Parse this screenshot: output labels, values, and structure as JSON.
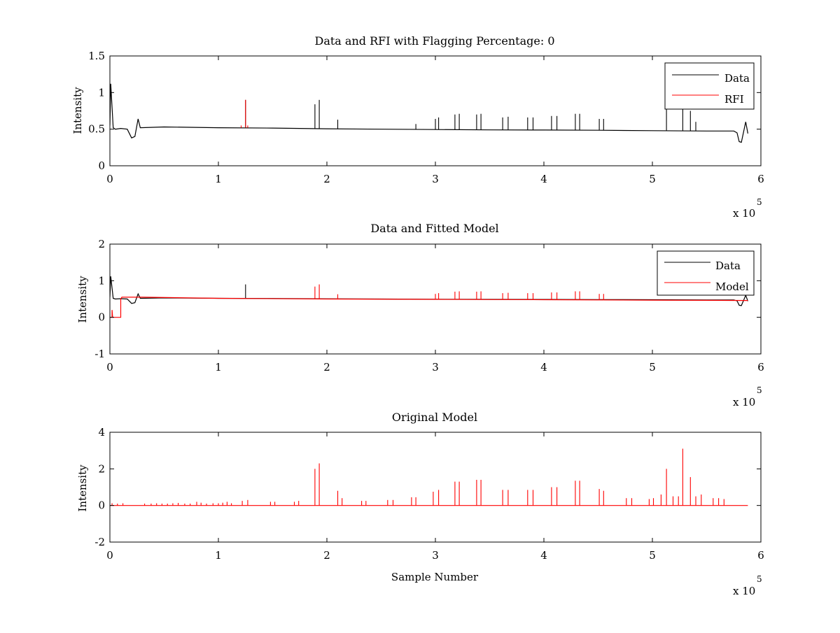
{
  "chart_data": [
    {
      "type": "line",
      "title": "Data and RFI with Flagging Percentage: 0",
      "xlabel": "",
      "ylabel": "Intensity",
      "xlim": [
        0,
        600000
      ],
      "ylim": [
        0,
        1.5
      ],
      "x_ticks": [
        "0",
        "1",
        "2",
        "3",
        "4",
        "5",
        "6"
      ],
      "y_ticks": [
        "0",
        "0.5",
        "1",
        "1.5"
      ],
      "x_multiplier": "x 10",
      "x_multiplier_exp": "5",
      "legend": {
        "position": "top-right",
        "entries": [
          "Data",
          "RFI"
        ]
      },
      "colors": {
        "Data": "#000000",
        "RFI": "#ff0000"
      },
      "series": [
        {
          "name": "Data",
          "baseline": [
            [
              0,
              0.55
            ],
            [
              800,
              1.12
            ],
            [
              3000,
              0.52
            ],
            [
              5000,
              0.5
            ],
            [
              10000,
              0.51
            ],
            [
              16000,
              0.5
            ],
            [
              20000,
              0.38
            ],
            [
              23000,
              0.4
            ],
            [
              26000,
              0.64
            ],
            [
              28000,
              0.52
            ],
            [
              50000,
              0.53
            ],
            [
              100000,
              0.52
            ],
            [
              150000,
              0.515
            ],
            [
              200000,
              0.505
            ],
            [
              250000,
              0.5
            ],
            [
              300000,
              0.495
            ],
            [
              350000,
              0.49
            ],
            [
              400000,
              0.488
            ],
            [
              450000,
              0.485
            ],
            [
              500000,
              0.48
            ],
            [
              550000,
              0.475
            ],
            [
              575000,
              0.475
            ],
            [
              578000,
              0.45
            ],
            [
              580000,
              0.33
            ],
            [
              582000,
              0.32
            ],
            [
              586000,
              0.6
            ],
            [
              588000,
              0.44
            ]
          ],
          "spikes": [
            [
              125000,
              0.9
            ],
            [
              189000,
              0.84
            ],
            [
              193000,
              0.9
            ],
            [
              210000,
              0.63
            ],
            [
              282000,
              0.57
            ],
            [
              300000,
              0.64
            ],
            [
              303000,
              0.66
            ],
            [
              318000,
              0.7
            ],
            [
              322000,
              0.71
            ],
            [
              338000,
              0.7
            ],
            [
              342000,
              0.71
            ],
            [
              362000,
              0.66
            ],
            [
              367000,
              0.67
            ],
            [
              385000,
              0.66
            ],
            [
              390000,
              0.66
            ],
            [
              407000,
              0.68
            ],
            [
              412000,
              0.68
            ],
            [
              429000,
              0.71
            ],
            [
              433000,
              0.71
            ],
            [
              451000,
              0.64
            ],
            [
              455000,
              0.64
            ],
            [
              513000,
              0.87
            ],
            [
              528000,
              1.05
            ],
            [
              535000,
              0.75
            ],
            [
              540000,
              0.6
            ]
          ]
        },
        {
          "name": "RFI",
          "spikes": [
            [
              121000,
              0.55
            ],
            [
              125000,
              0.9
            ],
            [
              127000,
              0.55
            ]
          ]
        }
      ]
    },
    {
      "type": "line",
      "title": "Data and Fitted Model",
      "xlabel": "",
      "ylabel": "Intensity",
      "xlim": [
        0,
        600000
      ],
      "ylim": [
        -1,
        2
      ],
      "x_ticks": [
        "0",
        "1",
        "2",
        "3",
        "4",
        "5",
        "6"
      ],
      "y_ticks": [
        "-1",
        "0",
        "1",
        "2"
      ],
      "x_multiplier": "x 10",
      "x_multiplier_exp": "5",
      "legend": {
        "position": "top-right",
        "entries": [
          "Data",
          "Model"
        ]
      },
      "colors": {
        "Data": "#000000",
        "Model": "#ff0000"
      },
      "series": [
        {
          "name": "Data",
          "baseline": [
            [
              0,
              0.55
            ],
            [
              800,
              1.12
            ],
            [
              3000,
              0.52
            ],
            [
              5000,
              0.5
            ],
            [
              10000,
              0.51
            ],
            [
              16000,
              0.5
            ],
            [
              20000,
              0.38
            ],
            [
              23000,
              0.4
            ],
            [
              26000,
              0.64
            ],
            [
              28000,
              0.52
            ],
            [
              50000,
              0.53
            ],
            [
              100000,
              0.52
            ],
            [
              150000,
              0.515
            ],
            [
              200000,
              0.505
            ],
            [
              250000,
              0.5
            ],
            [
              300000,
              0.495
            ],
            [
              350000,
              0.49
            ],
            [
              400000,
              0.488
            ],
            [
              450000,
              0.485
            ],
            [
              500000,
              0.48
            ],
            [
              550000,
              0.475
            ],
            [
              575000,
              0.475
            ],
            [
              578000,
              0.45
            ],
            [
              580000,
              0.33
            ],
            [
              582000,
              0.32
            ],
            [
              586000,
              0.6
            ],
            [
              588000,
              0.44
            ]
          ],
          "spikes": [
            [
              125000,
              0.9
            ]
          ]
        },
        {
          "name": "Model",
          "baseline": [
            [
              0,
              0.0
            ],
            [
              2000,
              0.0
            ],
            [
              2000,
              0.2
            ],
            [
              2500,
              0.0
            ],
            [
              10000,
              0.0
            ],
            [
              10000,
              0.5
            ],
            [
              11000,
              0.55
            ],
            [
              30000,
              0.55
            ],
            [
              100000,
              0.52
            ],
            [
              200000,
              0.5
            ],
            [
              300000,
              0.49
            ],
            [
              400000,
              0.48
            ],
            [
              500000,
              0.47
            ],
            [
              588000,
              0.46
            ]
          ],
          "spikes": [
            [
              189000,
              0.84
            ],
            [
              193000,
              0.9
            ],
            [
              210000,
              0.63
            ],
            [
              300000,
              0.64
            ],
            [
              303000,
              0.66
            ],
            [
              318000,
              0.7
            ],
            [
              322000,
              0.71
            ],
            [
              338000,
              0.7
            ],
            [
              342000,
              0.71
            ],
            [
              362000,
              0.66
            ],
            [
              367000,
              0.67
            ],
            [
              385000,
              0.66
            ],
            [
              390000,
              0.66
            ],
            [
              407000,
              0.68
            ],
            [
              412000,
              0.68
            ],
            [
              429000,
              0.71
            ],
            [
              433000,
              0.71
            ],
            [
              451000,
              0.64
            ],
            [
              455000,
              0.64
            ]
          ]
        }
      ]
    },
    {
      "type": "line",
      "title": "Original Model",
      "xlabel": "Sample Number",
      "ylabel": "Intensity",
      "xlim": [
        0,
        600000
      ],
      "ylim": [
        -2,
        4
      ],
      "x_ticks": [
        "0",
        "1",
        "2",
        "3",
        "4",
        "5",
        "6"
      ],
      "y_ticks": [
        "-2",
        "0",
        "2",
        "4"
      ],
      "x_multiplier": "x 10",
      "x_multiplier_exp": "5",
      "colors": {
        "Model": "#ff0000"
      },
      "series": [
        {
          "name": "Model",
          "baseline": [
            [
              0,
              0.0
            ],
            [
              588000,
              0.0
            ]
          ],
          "spikes": [
            [
              2000,
              0.12
            ],
            [
              7000,
              0.1
            ],
            [
              12000,
              0.12
            ],
            [
              32000,
              0.1
            ],
            [
              38000,
              0.1
            ],
            [
              43000,
              0.12
            ],
            [
              48000,
              0.1
            ],
            [
              53000,
              0.1
            ],
            [
              58000,
              0.12
            ],
            [
              63000,
              0.14
            ],
            [
              69000,
              0.1
            ],
            [
              74000,
              0.1
            ],
            [
              80000,
              0.2
            ],
            [
              84000,
              0.15
            ],
            [
              89000,
              0.1
            ],
            [
              95000,
              0.12
            ],
            [
              100000,
              0.12
            ],
            [
              104000,
              0.15
            ],
            [
              108000,
              0.2
            ],
            [
              112000,
              0.12
            ],
            [
              122000,
              0.25
            ],
            [
              127000,
              0.3
            ],
            [
              148000,
              0.2
            ],
            [
              152000,
              0.2
            ],
            [
              170000,
              0.2
            ],
            [
              174000,
              0.25
            ],
            [
              189000,
              2.0
            ],
            [
              193000,
              2.3
            ],
            [
              210000,
              0.8
            ],
            [
              214000,
              0.4
            ],
            [
              232000,
              0.25
            ],
            [
              236000,
              0.25
            ],
            [
              256000,
              0.3
            ],
            [
              261000,
              0.3
            ],
            [
              278000,
              0.45
            ],
            [
              282000,
              0.45
            ],
            [
              298000,
              0.75
            ],
            [
              303000,
              0.85
            ],
            [
              318000,
              1.3
            ],
            [
              322000,
              1.3
            ],
            [
              338000,
              1.4
            ],
            [
              342000,
              1.4
            ],
            [
              362000,
              0.85
            ],
            [
              367000,
              0.85
            ],
            [
              385000,
              0.85
            ],
            [
              390000,
              0.85
            ],
            [
              407000,
              1.0
            ],
            [
              412000,
              1.0
            ],
            [
              429000,
              1.35
            ],
            [
              433000,
              1.35
            ],
            [
              451000,
              0.9
            ],
            [
              455000,
              0.8
            ],
            [
              476000,
              0.4
            ],
            [
              481000,
              0.4
            ],
            [
              497000,
              0.35
            ],
            [
              501000,
              0.4
            ],
            [
              508000,
              0.6
            ],
            [
              513000,
              2.0
            ],
            [
              519000,
              0.5
            ],
            [
              524000,
              0.5
            ],
            [
              528000,
              3.1
            ],
            [
              535000,
              1.55
            ],
            [
              540000,
              0.5
            ],
            [
              545000,
              0.6
            ],
            [
              556000,
              0.4
            ],
            [
              561000,
              0.4
            ],
            [
              566000,
              0.35
            ]
          ]
        }
      ]
    }
  ]
}
